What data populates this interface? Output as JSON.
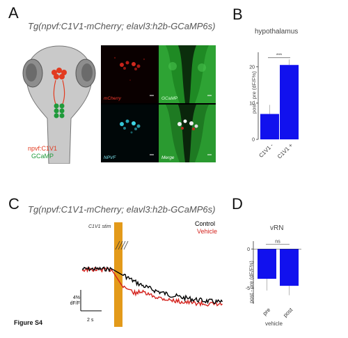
{
  "panel_a": {
    "letter": "A",
    "genotype": "Tg(npvf:C1V1-mCherry; elavl3:h2b-GCaMP6s)",
    "legend_line1": "npvf:C1V1",
    "legend_line2": "GCaMP",
    "micrograph_labels": [
      "mCherry",
      "GCaMP",
      "NPVF",
      "Merge"
    ],
    "colors": {
      "red": "#e23a1f",
      "green": "#1f9a3a",
      "cyan": "#35c6d6"
    }
  },
  "panel_b": {
    "letter": "B",
    "title": "hypothalamus",
    "significance": "***",
    "chart_data": {
      "type": "bar",
      "title": "hypothalamus",
      "ylabel": "post - pre (dF/F%)",
      "categories": [
        "C1V1 -",
        "C1V1 +"
      ],
      "values": [
        7,
        20.5
      ],
      "errors": [
        2.5,
        1.5
      ],
      "ylim": [
        0,
        24
      ],
      "yticks": [
        0,
        10,
        20
      ],
      "bar_color": "#1111ee"
    }
  },
  "panel_c": {
    "letter": "C",
    "genotype": "Tg(npvf:C1V1-mCherry; elavl3:h2b-GCaMP6s)",
    "stim_label": "C1V1 stim",
    "legend_control": "Control",
    "legend_vehicle": "Vehicle",
    "scale_y": "4%\ndF/F",
    "scale_y_line1": "4%",
    "scale_y_line2": "dF/F",
    "scale_x": "2 s",
    "stim_color": "#e39a1a",
    "chart_data": {
      "type": "line",
      "series": [
        {
          "name": "Control",
          "color": "#000000"
        },
        {
          "name": "Vehicle",
          "color": "#d4231e"
        }
      ]
    }
  },
  "panel_d": {
    "letter": "D",
    "title": "vRN",
    "significance": "ns",
    "xlabel": "vehicle",
    "chart_data": {
      "type": "bar",
      "title": "vRN",
      "ylabel": "post - pre (dF/F%)",
      "xlabel": "vehicle",
      "categories": [
        "pre",
        "post"
      ],
      "values": [
        -3.8,
        -4.7
      ],
      "errors": [
        1.5,
        1.2
      ],
      "ylim": [
        -7,
        1
      ],
      "yticks": [
        0,
        -5
      ],
      "bar_color": "#1111ee"
    }
  },
  "figure_label": "Figure S4"
}
